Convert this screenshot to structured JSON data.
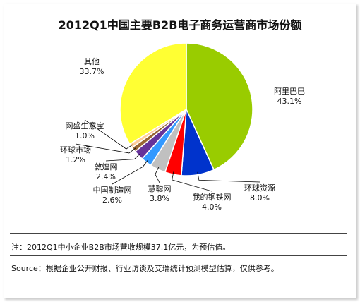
{
  "chart_data": {
    "type": "pie",
    "title": "2012Q1中国主要B2B电子商务运营商市场份额",
    "slices": [
      {
        "name": "阿里巴巴",
        "value": 43.1,
        "label": "43.1%",
        "color": "#99CC00"
      },
      {
        "name": "环球资源",
        "value": 8.0,
        "label": "8.0%",
        "color": "#0033CC"
      },
      {
        "name": "我的钢铁网",
        "value": 4.0,
        "label": "4.0%",
        "color": "#FF0000"
      },
      {
        "name": "慧聪网",
        "value": 3.8,
        "label": "3.8%",
        "color": "#C0C0C0"
      },
      {
        "name": "中国制造网",
        "value": 2.6,
        "label": "2.6%",
        "color": "#3399FF"
      },
      {
        "name": "敦煌网",
        "value": 2.4,
        "label": "2.4%",
        "color": "#663399"
      },
      {
        "name": "环球市场",
        "value": 1.2,
        "label": "1.2%",
        "color": "#996633"
      },
      {
        "name": "网盛生意宝",
        "value": 1.0,
        "label": "1.0%",
        "color": "#FFCC99"
      },
      {
        "name": "其他",
        "value": 33.7,
        "label": "33.7%",
        "color": "#FFFF33"
      }
    ]
  },
  "footer": {
    "note": "注：2012Q1中小企业B2B市场营收规模37.1亿元，为预估值。",
    "source": "Source：根据企业公开财报、行业访谈及艾瑞统计预测模型估算，仅供参考。"
  }
}
